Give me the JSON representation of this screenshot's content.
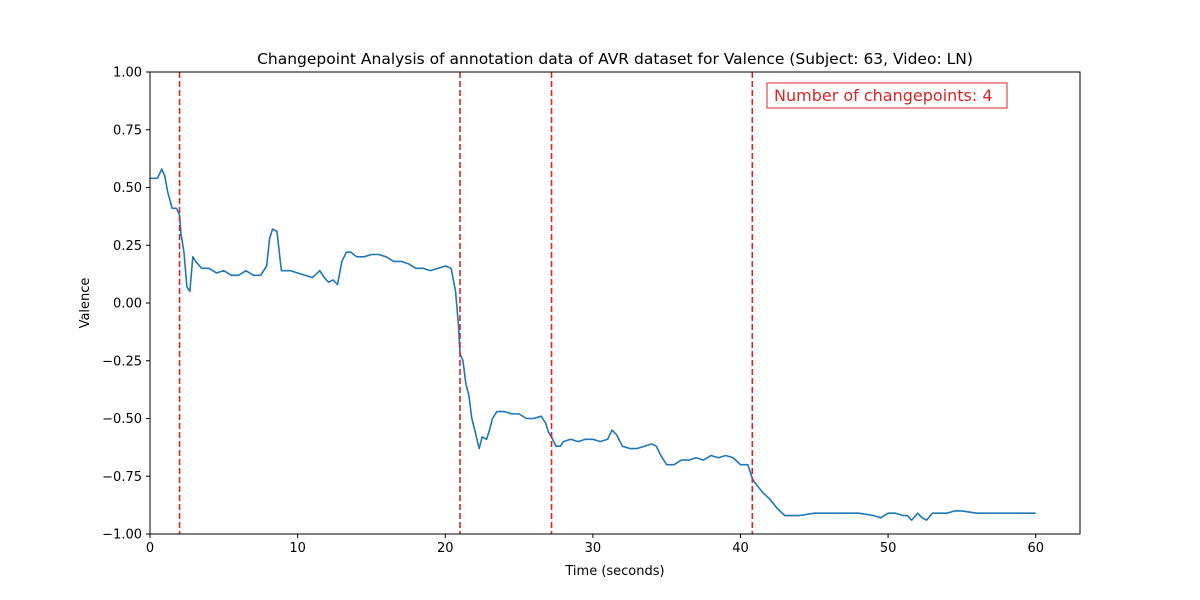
{
  "chart_data": {
    "type": "line",
    "title": "Changepoint Analysis of annotation data of AVR dataset for Valence (Subject: 63, Video: LN)",
    "xlabel": "Time (seconds)",
    "ylabel": "Valence",
    "xlim": [
      0,
      63
    ],
    "ylim": [
      -1.0,
      1.0
    ],
    "xticks": [
      0,
      10,
      20,
      30,
      40,
      50,
      60
    ],
    "xtick_labels": [
      "0",
      "10",
      "20",
      "30",
      "40",
      "50",
      "60"
    ],
    "yticks": [
      -1.0,
      -0.75,
      -0.5,
      -0.25,
      0.0,
      0.25,
      0.5,
      0.75,
      1.0
    ],
    "ytick_labels": [
      "−1.00",
      "−0.75",
      "−0.50",
      "−0.25",
      "0.00",
      "0.25",
      "0.50",
      "0.75",
      "1.00"
    ],
    "grid": false,
    "line_color": "#1f77b4",
    "changepoint_color": "#d62728",
    "annotation": "Number of changepoints: 4",
    "changepoints": [
      2.0,
      21.0,
      27.2,
      40.8
    ],
    "series": [
      {
        "x": [
          0,
          0.5,
          0.8,
          1.0,
          1.2,
          1.5,
          1.8,
          2.0,
          2.1,
          2.3,
          2.5,
          2.7,
          2.9,
          3.1,
          3.5,
          4.0,
          4.5,
          5.0,
          5.5,
          6.0,
          6.5,
          7.0,
          7.5,
          7.9,
          8.1,
          8.3,
          8.6,
          8.9,
          9.1,
          9.5,
          10.0,
          10.5,
          11.0,
          11.5,
          11.8,
          12.1,
          12.4,
          12.7,
          13.0,
          13.3,
          13.6,
          14.0,
          14.5,
          15.0,
          15.5,
          16.0,
          16.5,
          17.0,
          17.5,
          18.0,
          18.5,
          19.0,
          19.5,
          20.0,
          20.4,
          20.7,
          20.9,
          21.0,
          21.2,
          21.4,
          21.6,
          21.8,
          22.0,
          22.3,
          22.5,
          22.8,
          23.0,
          23.2,
          23.5,
          24.0,
          24.5,
          25.0,
          25.5,
          26.0,
          26.5,
          26.8,
          27.0,
          27.2,
          27.5,
          27.8,
          28.0,
          28.5,
          29.0,
          29.5,
          30.0,
          30.5,
          31.0,
          31.3,
          31.6,
          32.0,
          32.5,
          33.0,
          33.5,
          34.0,
          34.3,
          34.6,
          35.0,
          35.5,
          36.0,
          36.5,
          37.0,
          37.5,
          38.0,
          38.5,
          39.0,
          39.5,
          40.0,
          40.5,
          40.8,
          41.0,
          41.5,
          42.0,
          42.5,
          43.0,
          44.0,
          45.0,
          46.0,
          47.0,
          48.0,
          49.0,
          49.5,
          50.0,
          50.5,
          51.0,
          51.3,
          51.6,
          52.0,
          52.3,
          52.6,
          53.0,
          53.5,
          54.0,
          54.5,
          55.0,
          56.0,
          57.0,
          58.0,
          59.0,
          60.0
        ],
        "y": [
          0.54,
          0.54,
          0.58,
          0.55,
          0.48,
          0.41,
          0.41,
          0.38,
          0.3,
          0.22,
          0.07,
          0.05,
          0.2,
          0.18,
          0.15,
          0.15,
          0.13,
          0.14,
          0.12,
          0.12,
          0.14,
          0.12,
          0.12,
          0.16,
          0.28,
          0.32,
          0.31,
          0.14,
          0.14,
          0.14,
          0.13,
          0.12,
          0.11,
          0.14,
          0.11,
          0.09,
          0.1,
          0.08,
          0.18,
          0.22,
          0.22,
          0.2,
          0.2,
          0.21,
          0.21,
          0.2,
          0.18,
          0.18,
          0.17,
          0.15,
          0.15,
          0.14,
          0.15,
          0.16,
          0.15,
          0.05,
          -0.1,
          -0.22,
          -0.25,
          -0.35,
          -0.4,
          -0.5,
          -0.55,
          -0.63,
          -0.58,
          -0.59,
          -0.55,
          -0.5,
          -0.47,
          -0.47,
          -0.48,
          -0.48,
          -0.5,
          -0.5,
          -0.49,
          -0.52,
          -0.56,
          -0.58,
          -0.62,
          -0.62,
          -0.6,
          -0.59,
          -0.6,
          -0.59,
          -0.59,
          -0.6,
          -0.59,
          -0.55,
          -0.57,
          -0.62,
          -0.63,
          -0.63,
          -0.62,
          -0.61,
          -0.62,
          -0.66,
          -0.7,
          -0.7,
          -0.68,
          -0.68,
          -0.67,
          -0.68,
          -0.66,
          -0.67,
          -0.66,
          -0.67,
          -0.7,
          -0.7,
          -0.76,
          -0.78,
          -0.82,
          -0.85,
          -0.89,
          -0.92,
          -0.92,
          -0.91,
          -0.91,
          -0.91,
          -0.91,
          -0.92,
          -0.93,
          -0.91,
          -0.91,
          -0.92,
          -0.92,
          -0.94,
          -0.91,
          -0.93,
          -0.94,
          -0.91,
          -0.91,
          -0.91,
          -0.9,
          -0.9,
          -0.91,
          -0.91,
          -0.91,
          -0.91,
          -0.91
        ]
      }
    ]
  }
}
